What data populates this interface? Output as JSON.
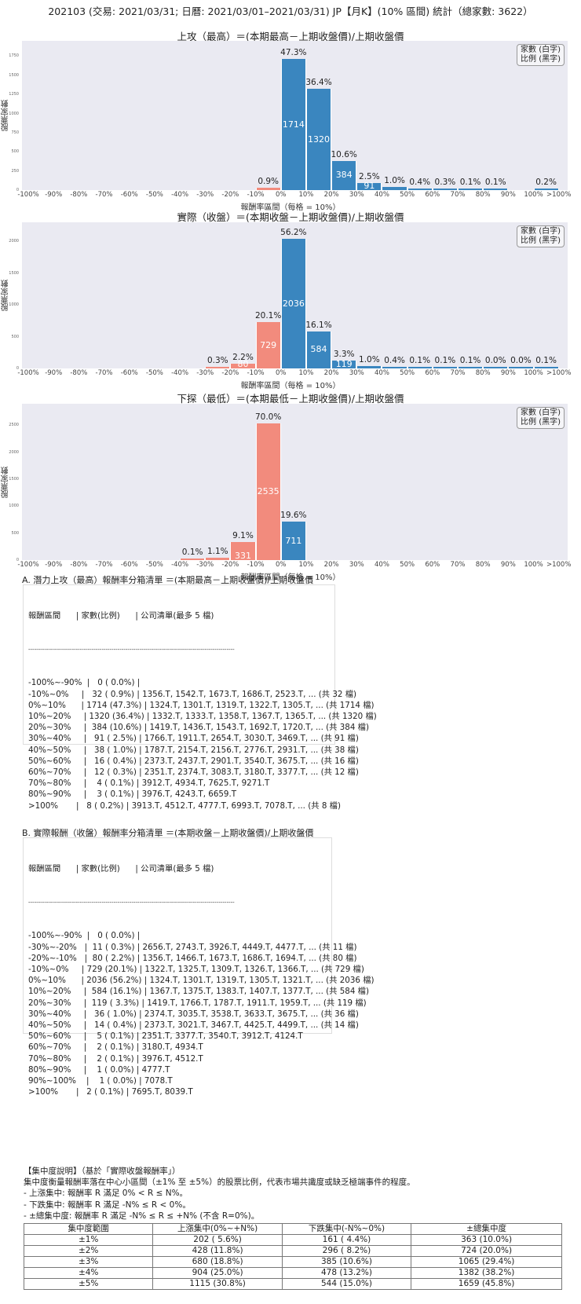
{
  "title": "202103 (交易: 2021/03/31; 日曆: 2021/03/01–2021/03/31) JP【月K】(10% 區間) 統計（總家數: 3622）",
  "legend": {
    "line1": "家數 (白字)",
    "line2": "比例 (黑字)"
  },
  "axis": {
    "ylabel": "股票家數",
    "xlabel": "報酬率區間（每格 = 10%）",
    "xticks": [
      "-100%",
      "-90%",
      "-80%",
      "-70%",
      "-60%",
      "-50%",
      "-40%",
      "-30%",
      "-20%",
      "-10%",
      "0%",
      "10%",
      "20%",
      "30%",
      "40%",
      "50%",
      "60%",
      "70%",
      "80%",
      "90%",
      "100%",
      ">100%"
    ]
  },
  "colors": {
    "positive": "#3a86bf",
    "negative": "#f28b7d",
    "plot_bg": "#eaeaf2"
  },
  "chart_data": [
    {
      "type": "bar",
      "title": "上攻（最高）＝(本期最高－上期收盤價)/上期收盤價",
      "xlabel": "報酬率區間（每格 = 10%）",
      "ylabel": "股票家數",
      "ylim": [
        0,
        1950
      ],
      "yticks": [
        0,
        250,
        500,
        750,
        1000,
        1250,
        1500,
        1750
      ],
      "categories": [
        "-10%~0%",
        "0%~10%",
        "10%~20%",
        "20%~30%",
        "30%~40%",
        "40%~50%",
        "50%~60%",
        "60%~70%",
        "70%~80%",
        "80%~90%",
        ">100%"
      ],
      "bin_index": [
        9,
        10,
        11,
        12,
        13,
        14,
        15,
        16,
        17,
        18,
        20
      ],
      "values": [
        32,
        1714,
        1320,
        384,
        91,
        38,
        16,
        12,
        4,
        3,
        8
      ],
      "pct": [
        "0.9%",
        "47.3%",
        "36.4%",
        "10.6%",
        "2.5%",
        "1.0%",
        "0.4%",
        "0.3%",
        "0.1%",
        "0.1%",
        "0.2%"
      ],
      "show_count": [
        false,
        true,
        true,
        true,
        true,
        false,
        false,
        false,
        false,
        false,
        false
      ]
    },
    {
      "type": "bar",
      "title": "實際（收盤）＝(本期收盤－上期收盤價)/上期收盤價",
      "xlabel": "報酬率區間（每格 = 10%）",
      "ylabel": "股票家數",
      "ylim": [
        0,
        2300
      ],
      "yticks": [
        0,
        500,
        1000,
        1500,
        2000
      ],
      "categories": [
        "-30%~-20%",
        "-20%~-10%",
        "-10%~0%",
        "0%~10%",
        "10%~20%",
        "20%~30%",
        "30%~40%",
        "40%~50%",
        "50%~60%",
        "60%~70%",
        "70%~80%",
        "80%~90%",
        "90%~100%",
        ">100%"
      ],
      "bin_index": [
        7,
        8,
        9,
        10,
        11,
        12,
        13,
        14,
        15,
        16,
        17,
        18,
        19,
        20
      ],
      "values": [
        11,
        80,
        729,
        2036,
        584,
        119,
        36,
        14,
        5,
        2,
        2,
        1,
        1,
        2
      ],
      "pct": [
        "0.3%",
        "2.2%",
        "20.1%",
        "56.2%",
        "16.1%",
        "3.3%",
        "1.0%",
        "0.4%",
        "0.1%",
        "0.1%",
        "0.1%",
        "0.0%",
        "0.0%",
        "0.1%"
      ],
      "show_count": [
        false,
        true,
        true,
        true,
        true,
        true,
        false,
        false,
        false,
        false,
        false,
        false,
        false,
        false
      ]
    },
    {
      "type": "bar",
      "title": "下探（最低）＝(本期最低－上期收盤價)/上期收盤價",
      "xlabel": "報酬率區間（每格 = 10%）",
      "ylabel": "股票家數",
      "ylim": [
        0,
        2900
      ],
      "yticks": [
        0,
        500,
        1000,
        1500,
        2000,
        2500
      ],
      "categories": [
        "-40%~-30%",
        "-30%~-20%",
        "-20%~-10%",
        "-10%~0%",
        "0%~10%"
      ],
      "bin_index": [
        6,
        7,
        8,
        9,
        10
      ],
      "values": [
        4,
        41,
        331,
        2535,
        711
      ],
      "pct": [
        "0.1%",
        "1.1%",
        "9.1%",
        "70.0%",
        "19.6%"
      ],
      "show_count": [
        false,
        false,
        true,
        true,
        true
      ]
    }
  ],
  "list_a": {
    "title": "A. 潛力上攻（最高）報酬率分箱清單 ＝(本期最高－上期收盤價)/上期收盤價",
    "header": "報酬區間      | 家數(比例)      | 公司清單(最多 5 檔)",
    "separator": "--------------------------------------------------------------------------------------------------------",
    "rows": [
      "-100%~-90%  |   0 ( 0.0%) |",
      "-10%~0%     |   32 ( 0.9%) | 1356.T, 1542.T, 1673.T, 1686.T, 2523.T, ... (共 32 檔)",
      "0%~10%      | 1714 (47.3%) | 1324.T, 1301.T, 1319.T, 1322.T, 1305.T, ... (共 1714 檔)",
      "10%~20%     | 1320 (36.4%) | 1332.T, 1333.T, 1358.T, 1367.T, 1365.T, ... (共 1320 檔)",
      "20%~30%     |  384 (10.6%) | 1419.T, 1436.T, 1543.T, 1692.T, 1720.T, ... (共 384 檔)",
      "30%~40%     |   91 ( 2.5%) | 1766.T, 1911.T, 2654.T, 3030.T, 3469.T, ... (共 91 檔)",
      "40%~50%     |   38 ( 1.0%) | 1787.T, 2154.T, 2156.T, 2776.T, 2931.T, ... (共 38 檔)",
      "50%~60%     |   16 ( 0.4%) | 2373.T, 2437.T, 2901.T, 3540.T, 3675.T, ... (共 16 檔)",
      "60%~70%     |   12 ( 0.3%) | 2351.T, 2374.T, 3083.T, 3180.T, 3377.T, ... (共 12 檔)",
      "70%~80%     |    4 ( 0.1%) | 3912.T, 4934.T, 7625.T, 9271.T",
      "80%~90%     |    3 ( 0.1%) | 3976.T, 4243.T, 6659.T",
      ">100%       |   8 ( 0.2%) | 3913.T, 4512.T, 4777.T, 6993.T, 7078.T, ... (共 8 檔)"
    ]
  },
  "list_b": {
    "title": "B. 實際報酬（收盤）報酬率分箱清單 ＝(本期收盤－上期收盤價)/上期收盤價",
    "header": "報酬區間      | 家數(比例)      | 公司清單(最多 5 檔)",
    "separator": "--------------------------------------------------------------------------------------------------------",
    "rows": [
      "-100%~-90%  |   0 ( 0.0%) |",
      "-30%~-20%   |  11 ( 0.3%) | 2656.T, 2743.T, 3926.T, 4449.T, 4477.T, ... (共 11 檔)",
      "-20%~-10%   |  80 ( 2.2%) | 1356.T, 1466.T, 1673.T, 1686.T, 1694.T, ... (共 80 檔)",
      "-10%~0%     | 729 (20.1%) | 1322.T, 1325.T, 1309.T, 1326.T, 1366.T, ... (共 729 檔)",
      "0%~10%      | 2036 (56.2%) | 1324.T, 1301.T, 1319.T, 1305.T, 1321.T, ... (共 2036 檔)",
      "10%~20%     |  584 (16.1%) | 1367.T, 1375.T, 1383.T, 1407.T, 1377.T, ... (共 584 檔)",
      "20%~30%     |  119 ( 3.3%) | 1419.T, 1766.T, 1787.T, 1911.T, 1959.T, ... (共 119 檔)",
      "30%~40%     |   36 ( 1.0%) | 2374.T, 3035.T, 3538.T, 3633.T, 3675.T, ... (共 36 檔)",
      "40%~50%     |   14 ( 0.4%) | 2373.T, 3021.T, 3467.T, 4425.T, 4499.T, ... (共 14 檔)",
      "50%~60%     |    5 ( 0.1%) | 2351.T, 3377.T, 3540.T, 3912.T, 4124.T",
      "60%~70%     |    2 ( 0.1%) | 3180.T, 4934.T",
      "70%~80%     |    2 ( 0.1%) | 3976.T, 4512.T",
      "80%~90%     |    1 ( 0.0%) | 4777.T",
      "90%~100%    |    1 ( 0.0%) | 7078.T",
      ">100%       |   2 ( 0.1%) | 7695.T, 8039.T"
    ]
  },
  "concentration": {
    "heading": "【集中度說明】（基於「實際收盤報酬率」）",
    "desc": "集中度衡量報酬率落在中心小區間（±1% 至 ±5%）的股票比例，代表市場共識度或缺乏極端事件的程度。",
    "bullets": [
      " - 上漲集中: 報酬率 R 滿足 0% < R ≤ N%。",
      " - 下跌集中: 報酬率 R 滿足 -N% ≤ R < 0%。",
      " - ±總集中度: 報酬率 R 滿足 -N% ≤ R ≤ +N% (不含 R=0%)。"
    ],
    "columns": [
      "集中度範圍",
      "上漲集中(0%~+N%)",
      "下跌集中(-N%~0%)",
      "±總集中度"
    ],
    "rows": [
      [
        "±1%",
        "202 ( 5.6%)",
        "161 ( 4.4%)",
        "363 (10.0%)"
      ],
      [
        "±2%",
        "428 (11.8%)",
        "296 ( 8.2%)",
        "724 (20.0%)"
      ],
      [
        "±3%",
        "680 (18.8%)",
        "385 (10.6%)",
        "1065 (29.4%)"
      ],
      [
        "±4%",
        "904 (25.0%)",
        "478 (13.2%)",
        "1382 (38.2%)"
      ],
      [
        "±5%",
        "1115 (30.8%)",
        "544 (15.0%)",
        "1659 (45.8%)"
      ]
    ]
  }
}
